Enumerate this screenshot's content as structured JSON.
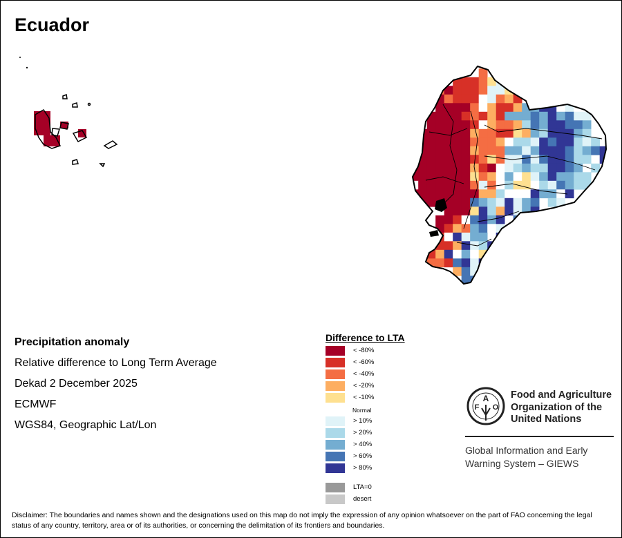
{
  "title": "Ecuador",
  "info": {
    "heading": "Precipitation anomaly",
    "subtitle": "Relative difference to Long Term Average",
    "period": "Dekad 2 December 2025",
    "source": "ECMWF",
    "projection": "WGS84, Geographic Lat/Lon"
  },
  "legend": {
    "title": "Difference to LTA",
    "items": [
      {
        "label": "< -80%",
        "code": "A",
        "color": "#a50026"
      },
      {
        "label": "< -60%",
        "code": "B",
        "color": "#d73027"
      },
      {
        "label": "< -40%",
        "code": "C",
        "color": "#f46d43"
      },
      {
        "label": "< -20%",
        "code": "D",
        "color": "#fdae61"
      },
      {
        "label": "< -10%",
        "code": "E",
        "color": "#fee090"
      },
      {
        "label": "Normal",
        "code": "W",
        "color": "#ffffff"
      },
      {
        "label": "> 10%",
        "code": "1",
        "color": "#e0f3f8"
      },
      {
        "label": "> 20%",
        "code": "2",
        "color": "#abd9e9"
      },
      {
        "label": "> 40%",
        "code": "3",
        "color": "#74add1"
      },
      {
        "label": "> 60%",
        "code": "4",
        "color": "#4575b4"
      },
      {
        "label": "> 80%",
        "code": "5",
        "color": "#313695"
      },
      {
        "label": "LTA=0",
        "code": "Z",
        "color": "#999999"
      },
      {
        "label": "desert",
        "code": "Y",
        "color": "#c8c8c8"
      }
    ]
  },
  "anomaly_grid": [
    "........C..............",
    ".....BBBCE1............",
    "...CABBBC11EA..........",
    "...ACBBBW1CDB..........",
    "...AAAACWDBBD3355W1W...",
    "..AAAABCBDB3334353411..",
    "..AAAAABWDCCD24355443..",
    ".AAAAAADCCBBED3255532..",
    ".AAAAAACCCDW2215455212.",
    "AAAAAAADCCC331355542345",
    "AAAAAAABCEC1141455422.5",
    "AAAAAAADBAW123225543 2.",
    "AAAAAAAECDW3WE1353322..",
    "WAAAAAAC1CW2EEW214322..",
    "AAAAAAAADD2WWW533W5....",
    ".AAAAAA43215134 21.....",
    "....AAAE52D5135........",
    "...AABW4535 4..........",
    "...ABDC34W1............",
    "...BW5133 5............",
    "...BBD5125.............",
    "..BD5W3WEW.............",
    "..CCB4515..............",
    ".....D412..............",
    "......444.............."
  ],
  "logo": {
    "fao_lines": [
      "Food and Agriculture",
      "Organization of the",
      "United Nations"
    ],
    "fao_seal_text": "FAO FIAT PANIS",
    "giews_lines": [
      "Global Information and Early",
      "Warning System – GIEWS"
    ]
  },
  "disclaimer": "Disclaimer: The boundaries and names shown and the designations used on this map do not imply the expression of any opinion whatsoever on the part of FAO concerning the legal status of any country, territory, area or of its authorities, or concerning the delimitation of its frontiers and boundaries."
}
